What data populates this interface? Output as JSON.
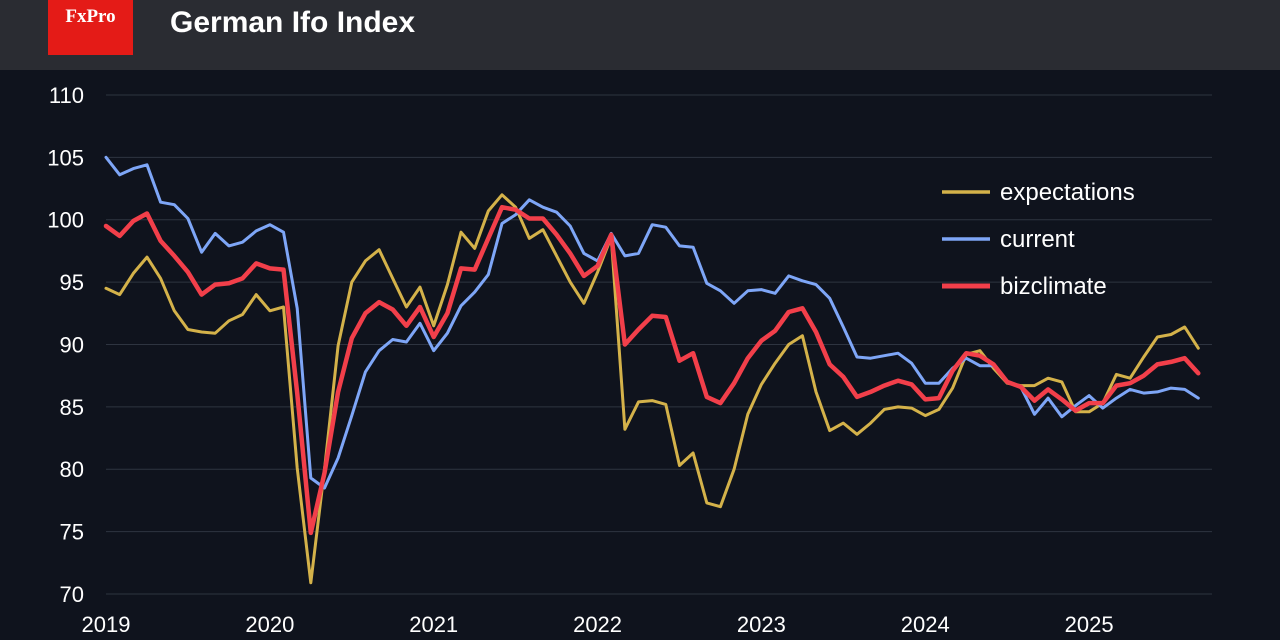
{
  "header": {
    "logo_text": "FxPro",
    "title": "German Ifo Index"
  },
  "colors": {
    "background": "#0f131d",
    "header": "#2a2c32",
    "logo": "#e41b17",
    "grid": "#2e3440"
  },
  "chart_data": {
    "type": "line",
    "title": "German Ifo Index",
    "xlabel": "",
    "ylabel": "",
    "xlim": [
      2019,
      2025.75
    ],
    "ylim": [
      70,
      112
    ],
    "yticks": [
      70,
      75,
      80,
      85,
      90,
      95,
      100,
      105,
      110
    ],
    "xticks": [
      2019,
      2020,
      2021,
      2022,
      2023,
      2024,
      2025
    ],
    "grid": true,
    "legend_position": "top-right",
    "series": [
      {
        "name": "expectations",
        "color": "#d4b24a",
        "values": [
          94.5,
          94.0,
          95.7,
          97.0,
          95.3,
          92.7,
          91.2,
          91.0,
          90.9,
          91.9,
          92.4,
          94.0,
          92.7,
          93.0,
          80.1,
          70.9,
          80.0,
          89.9,
          95.0,
          96.7,
          97.6,
          95.3,
          93.0,
          94.6,
          91.5,
          94.8,
          99.0,
          97.7,
          100.7,
          102.0,
          101.0,
          98.5,
          99.2,
          97.1,
          95.0,
          93.3,
          95.8,
          98.6,
          83.2,
          85.4,
          85.5,
          85.2,
          80.3,
          81.3,
          77.3,
          77.0,
          80.0,
          84.4,
          86.8,
          88.5,
          90.0,
          90.7,
          86.2,
          83.1,
          83.7,
          82.8,
          83.7,
          84.8,
          85.0,
          84.9,
          84.3,
          84.8,
          86.5,
          89.2,
          89.5,
          88.1,
          86.9,
          86.7,
          86.7,
          87.3,
          87.0,
          84.6,
          84.6,
          85.3,
          87.6,
          87.3,
          89.0,
          90.6,
          90.8,
          91.4,
          89.7
        ],
        "labels": [
          "Jan 2019",
          "Feb 2019",
          "Mar 2019",
          "Apr 2019",
          "May 2019",
          "Jun 2019",
          "Jul 2019",
          "Aug 2019",
          "Sep 2019",
          "Oct 2019",
          "Nov 2019",
          "Dec 2019",
          "Jan 2020",
          "Feb 2020",
          "Mar 2020",
          "Apr 2020",
          "May 2020",
          "Jun 2020",
          "Jul 2020",
          "Aug 2020",
          "Sep 2020",
          "Oct 2020",
          "Nov 2020",
          "Dec 2020",
          "Jan 2021",
          "Feb 2021",
          "Mar 2021",
          "Apr 2021",
          "May 2021",
          "Jun 2021",
          "Jul 2021",
          "Aug 2021",
          "Sep 2021",
          "Oct 2021",
          "Nov 2021",
          "Dec 2021",
          "Jan 2022",
          "Feb 2022",
          "Mar 2022",
          "Apr 2022",
          "May 2022",
          "Jun 2022",
          "Jul 2022",
          "Aug 2022",
          "Sep 2022",
          "Oct 2022",
          "Nov 2022",
          "Dec 2022",
          "Jan 2023",
          "Feb 2023",
          "Mar 2023",
          "Apr 2023",
          "May 2023",
          "Jun 2023",
          "Jul 2023",
          "Aug 2023",
          "Sep 2023",
          "Oct 2023",
          "Nov 2023",
          "Dec 2023",
          "Jan 2024",
          "Feb 2024",
          "Mar 2024",
          "Apr 2024",
          "May 2024",
          "Jun 2024",
          "Jul 2024",
          "Aug 2024",
          "Sep 2024",
          "Oct 2024",
          "Nov 2024",
          "Dec 2024",
          "Jan 2025",
          "Feb 2025",
          "Mar 2025",
          "Apr 2025",
          "May 2025",
          "Jun 2025",
          "Jul 2025",
          "Aug 2025",
          "Sep 2025"
        ]
      },
      {
        "name": "current",
        "color": "#7ea6f7",
        "values": [
          105.0,
          103.6,
          104.1,
          104.4,
          101.4,
          101.2,
          100.1,
          97.4,
          98.9,
          97.9,
          98.2,
          99.1,
          99.6,
          99.0,
          92.9,
          79.3,
          78.5,
          80.9,
          84.3,
          87.8,
          89.5,
          90.4,
          90.2,
          91.7,
          89.5,
          90.9,
          93.1,
          94.2,
          95.6,
          99.7,
          100.4,
          101.6,
          101.0,
          100.6,
          99.5,
          97.3,
          96.7,
          98.9,
          97.1,
          97.3,
          99.6,
          99.4,
          97.9,
          97.8,
          94.9,
          94.3,
          93.3,
          94.3,
          94.4,
          94.1,
          95.5,
          95.1,
          94.8,
          93.7,
          91.4,
          89.0,
          88.9,
          89.1,
          89.3,
          88.5,
          86.9,
          86.9,
          88.1,
          88.9,
          88.3,
          88.3,
          87.0,
          86.6,
          84.4,
          85.7,
          84.2,
          85.1,
          85.9,
          84.9,
          85.7,
          86.4,
          86.1,
          86.2,
          86.5,
          86.4,
          85.7
        ],
        "labels": [
          "Jan 2019",
          "Feb 2019",
          "Mar 2019",
          "Apr 2019",
          "May 2019",
          "Jun 2019",
          "Jul 2019",
          "Aug 2019",
          "Sep 2019",
          "Oct 2019",
          "Nov 2019",
          "Dec 2019",
          "Jan 2020",
          "Feb 2020",
          "Mar 2020",
          "Apr 2020",
          "May 2020",
          "Jun 2020",
          "Jul 2020",
          "Aug 2020",
          "Sep 2020",
          "Oct 2020",
          "Nov 2020",
          "Dec 2020",
          "Jan 2021",
          "Feb 2021",
          "Mar 2021",
          "Apr 2021",
          "May 2021",
          "Jun 2021",
          "Jul 2021",
          "Aug 2021",
          "Sep 2021",
          "Oct 2021",
          "Nov 2021",
          "Dec 2021",
          "Jan 2022",
          "Feb 2022",
          "Mar 2022",
          "Apr 2022",
          "May 2022",
          "Jun 2022",
          "Jul 2022",
          "Aug 2022",
          "Sep 2022",
          "Oct 2022",
          "Nov 2022",
          "Dec 2022",
          "Jan 2023",
          "Feb 2023",
          "Mar 2023",
          "Apr 2023",
          "May 2023",
          "Jun 2023",
          "Jul 2023",
          "Aug 2023",
          "Sep 2023",
          "Oct 2023",
          "Nov 2023",
          "Dec 2023",
          "Jan 2024",
          "Feb 2024",
          "Mar 2024",
          "Apr 2024",
          "May 2024",
          "Jun 2024",
          "Jul 2024",
          "Aug 2024",
          "Sep 2024",
          "Oct 2024",
          "Nov 2024",
          "Dec 2024",
          "Jan 2025",
          "Feb 2025",
          "Mar 2025",
          "Apr 2025",
          "May 2025",
          "Jun 2025",
          "Jul 2025",
          "Aug 2025",
          "Sep 2025"
        ]
      },
      {
        "name": "bizclimate",
        "color": "#f23f4a",
        "values": [
          99.5,
          98.7,
          99.9,
          100.5,
          98.3,
          97.1,
          95.8,
          94.0,
          94.8,
          94.9,
          95.3,
          96.5,
          96.1,
          96.0,
          86.1,
          74.9,
          79.7,
          86.2,
          90.5,
          92.5,
          93.4,
          92.8,
          91.5,
          93.0,
          90.6,
          92.5,
          96.1,
          96.0,
          98.5,
          101.0,
          100.8,
          100.1,
          100.1,
          98.8,
          97.3,
          95.5,
          96.3,
          98.8,
          90.0,
          91.2,
          92.3,
          92.2,
          88.7,
          89.3,
          85.8,
          85.3,
          86.9,
          88.9,
          90.3,
          91.1,
          92.6,
          92.9,
          91.0,
          88.4,
          87.4,
          85.8,
          86.2,
          86.7,
          87.1,
          86.8,
          85.6,
          85.7,
          87.9,
          89.3,
          89.1,
          88.4,
          87.0,
          86.6,
          85.5,
          86.4,
          85.6,
          84.7,
          85.3,
          85.3,
          86.7,
          86.9,
          87.5,
          88.4,
          88.6,
          88.9,
          87.7
        ],
        "labels": [
          "Jan 2019",
          "Feb 2019",
          "Mar 2019",
          "Apr 2019",
          "May 2019",
          "Jun 2019",
          "Jul 2019",
          "Aug 2019",
          "Sep 2019",
          "Oct 2019",
          "Nov 2019",
          "Dec 2019",
          "Jan 2020",
          "Feb 2020",
          "Mar 2020",
          "Apr 2020",
          "May 2020",
          "Jun 2020",
          "Jul 2020",
          "Aug 2020",
          "Sep 2020",
          "Oct 2020",
          "Nov 2020",
          "Dec 2020",
          "Jan 2021",
          "Feb 2021",
          "Mar 2021",
          "Apr 2021",
          "May 2021",
          "Jun 2021",
          "Jul 2021",
          "Aug 2021",
          "Sep 2021",
          "Oct 2021",
          "Nov 2021",
          "Dec 2021",
          "Jan 2022",
          "Feb 2022",
          "Mar 2022",
          "Apr 2022",
          "May 2022",
          "Jun 2022",
          "Jul 2022",
          "Aug 2022",
          "Sep 2022",
          "Oct 2022",
          "Nov 2022",
          "Dec 2022",
          "Jan 2023",
          "Feb 2023",
          "Mar 2023",
          "Apr 2023",
          "May 2023",
          "Jun 2023",
          "Jul 2023",
          "Aug 2023",
          "Sep 2023",
          "Oct 2023",
          "Nov 2023",
          "Dec 2023",
          "Jan 2024",
          "Feb 2024",
          "Mar 2024",
          "Apr 2024",
          "May 2024",
          "Jun 2024",
          "Jul 2024",
          "Aug 2024",
          "Sep 2024",
          "Oct 2024",
          "Nov 2024",
          "Dec 2024",
          "Jan 2025",
          "Feb 2025",
          "Mar 2025",
          "Apr 2025",
          "May 2025",
          "Jun 2025",
          "Jul 2025",
          "Aug 2025",
          "Sep 2025"
        ]
      }
    ]
  }
}
